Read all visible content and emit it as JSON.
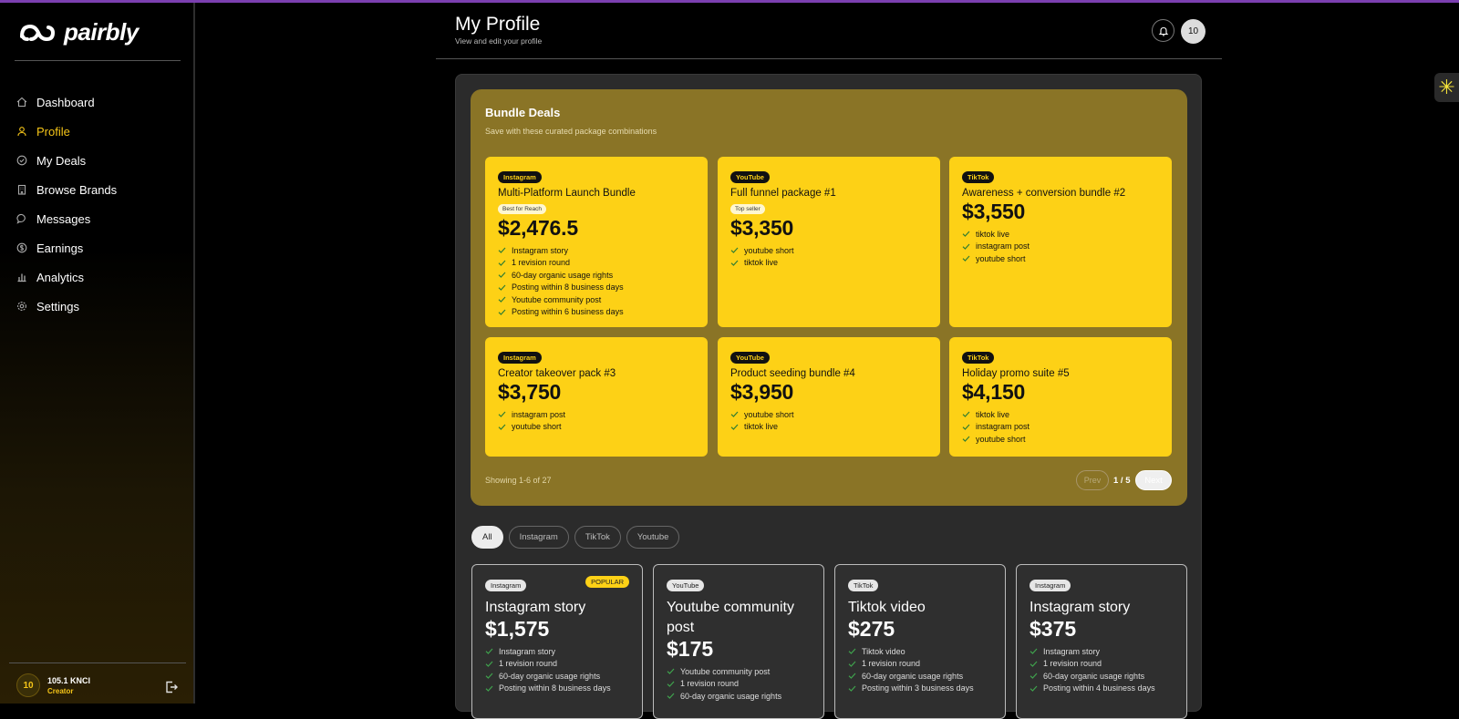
{
  "app": {
    "brand": "pairbly"
  },
  "sidebar": {
    "items": [
      {
        "label": "Dashboard",
        "icon": "home-icon",
        "active": false
      },
      {
        "label": "Profile",
        "icon": "user-icon",
        "active": true
      },
      {
        "label": "My Deals",
        "icon": "check-circle-icon",
        "active": false
      },
      {
        "label": "Browse Brands",
        "icon": "building-icon",
        "active": false
      },
      {
        "label": "Messages",
        "icon": "chat-icon",
        "active": false
      },
      {
        "label": "Earnings",
        "icon": "dollar-icon",
        "active": false
      },
      {
        "label": "Analytics",
        "icon": "bar-chart-icon",
        "active": false
      },
      {
        "label": "Settings",
        "icon": "gear-icon",
        "active": false
      }
    ],
    "user": {
      "avatar": "10",
      "name": "105.1 KNCI",
      "role": "Creator"
    }
  },
  "header": {
    "title": "My Profile",
    "subtitle": "View and edit your profile",
    "avatar": "10"
  },
  "bundles": {
    "title": "Bundle Deals",
    "subtitle": "Save with these curated package combinations",
    "cards": [
      {
        "platform": "Instagram",
        "name": "Multi-Platform Launch Bundle",
        "badge": "Best for Reach",
        "price": "$2,476.5",
        "features": [
          "Instagram story",
          "1 revision round",
          "60-day organic usage rights",
          "Posting within 8 business days",
          "Youtube community post",
          "Posting within 6 business days"
        ]
      },
      {
        "platform": "YouTube",
        "name": "Full funnel package #1",
        "badge": "Top seller",
        "price": "$3,350",
        "features": [
          "youtube short",
          "tiktok live"
        ]
      },
      {
        "platform": "TikTok",
        "name": "Awareness + conversion bundle #2",
        "badge": "",
        "price": "$3,550",
        "features": [
          "tiktok live",
          "instagram post",
          "youtube short"
        ]
      },
      {
        "platform": "Instagram",
        "name": "Creator takeover pack #3",
        "badge": "",
        "price": "$3,750",
        "features": [
          "instagram post",
          "youtube short"
        ]
      },
      {
        "platform": "YouTube",
        "name": "Product seeding bundle #4",
        "badge": "",
        "price": "$3,950",
        "features": [
          "youtube short",
          "tiktok live"
        ]
      },
      {
        "platform": "TikTok",
        "name": "Holiday promo suite #5",
        "badge": "",
        "price": "$4,150",
        "features": [
          "tiktok live",
          "instagram post",
          "youtube short"
        ]
      }
    ],
    "showing": "Showing 1-6 of 27",
    "prev_label": "Prev",
    "page_info": "1 / 5",
    "next_label": "Next"
  },
  "filters": [
    "All",
    "Instagram",
    "TikTok",
    "Youtube"
  ],
  "packages": [
    {
      "platform": "Instagram",
      "popular": "POPULAR",
      "name": "Instagram story",
      "price": "$1,575",
      "features": [
        "Instagram story",
        "1 revision round",
        "60-day organic usage rights",
        "Posting within 8 business days"
      ]
    },
    {
      "platform": "YouTube",
      "popular": "",
      "name": "Youtube community post",
      "price": "$175",
      "features": [
        "Youtube community post",
        "1 revision round",
        "60-day organic usage rights"
      ]
    },
    {
      "platform": "TikTok",
      "popular": "",
      "name": "Tiktok video",
      "price": "$275",
      "features": [
        "Tiktok video",
        "1 revision round",
        "60-day organic usage rights",
        "Posting within 3 business days"
      ]
    },
    {
      "platform": "Instagram",
      "popular": "",
      "name": "Instagram story",
      "price": "$375",
      "features": [
        "Instagram story",
        "1 revision round",
        "60-day organic usage rights",
        "Posting within 4 business days"
      ]
    }
  ],
  "colors": {
    "accent": "#fdd116",
    "bundle_bg": "#8a7426",
    "brand_line": "#7b3fb0"
  }
}
